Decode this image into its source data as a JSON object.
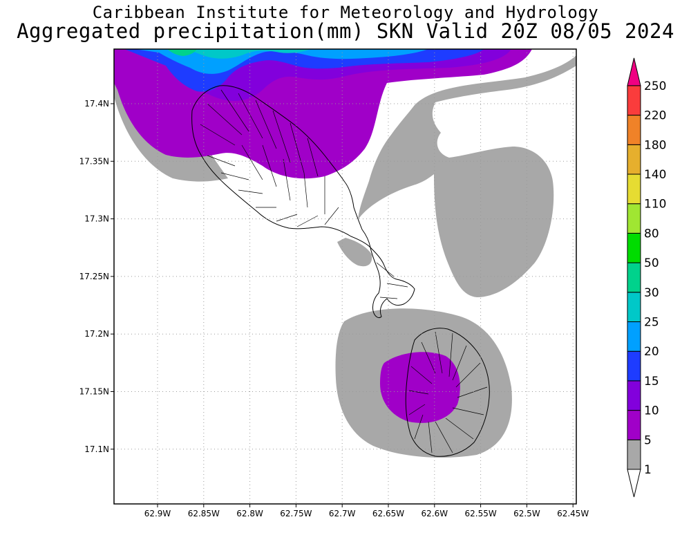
{
  "header": {
    "line1": "Caribbean Institute for Meteorology and Hydrology",
    "line2": "Aggregated precipitation(mm) SKN Valid 20Z 08/05 2024"
  },
  "axes": {
    "x_ticks": [
      "62.9W",
      "62.85W",
      "62.8W",
      "62.75W",
      "62.7W",
      "62.65W",
      "62.6W",
      "62.55W",
      "62.5W",
      "62.45W"
    ],
    "y_ticks": [
      "17.4N",
      "17.35N",
      "17.3N",
      "17.25N",
      "17.2N",
      "17.15N",
      "17.1N"
    ]
  },
  "colorbar": {
    "levels": [
      "1",
      "5",
      "10",
      "15",
      "20",
      "25",
      "30",
      "50",
      "80",
      "110",
      "140",
      "180",
      "220",
      "250"
    ],
    "colors": [
      "#a8a8a8",
      "#a000c8",
      "#8200dc",
      "#1e3cff",
      "#00a0ff",
      "#00c8c8",
      "#00d28c",
      "#00dc00",
      "#a0e632",
      "#e6dc32",
      "#e6af2d",
      "#f08228",
      "#fa3c3c",
      "#f00082"
    ]
  },
  "map_colors": {
    "gray": "#a8a8a8",
    "purple": "#a000c8",
    "violet": "#8200dc",
    "blue": "#1e3cff",
    "lightblue": "#00a0ff",
    "cyan": "#00c8c8",
    "green": "#00d28c",
    "outline": "#000000"
  }
}
